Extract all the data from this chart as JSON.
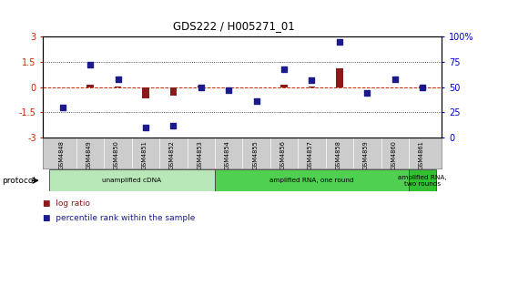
{
  "title": "GDS222 / H005271_01",
  "samples": [
    "GSM4848",
    "GSM4849",
    "GSM4850",
    "GSM4851",
    "GSM4852",
    "GSM4853",
    "GSM4854",
    "GSM4855",
    "GSM4856",
    "GSM4857",
    "GSM4858",
    "GSM4859",
    "GSM4860",
    "GSM4861"
  ],
  "log_ratio": [
    0.0,
    0.12,
    0.05,
    -0.65,
    -0.5,
    0.1,
    -0.05,
    -0.05,
    0.12,
    0.02,
    1.1,
    -0.05,
    0.0,
    0.02
  ],
  "percentile": [
    30,
    72,
    58,
    10,
    12,
    50,
    47,
    36,
    68,
    57,
    95,
    44,
    58,
    50
  ],
  "log_ratio_color": "#8b1a1a",
  "percentile_color": "#1a1a8b",
  "ylim_left": [
    -3,
    3
  ],
  "ylim_right": [
    0,
    100
  ],
  "yticks_left": [
    -3,
    -1.5,
    0,
    1.5,
    3
  ],
  "yticks_right": [
    0,
    25,
    50,
    75,
    100
  ],
  "protocol_groups": [
    {
      "label": "unamplified cDNA",
      "start": 0,
      "end": 5,
      "color": "#b8e8b8"
    },
    {
      "label": "amplified RNA, one round",
      "start": 6,
      "end": 12,
      "color": "#50d050"
    },
    {
      "label": "amplified RNA,\ntwo rounds",
      "start": 13,
      "end": 13,
      "color": "#30c030"
    }
  ],
  "protocol_label": "protocol",
  "legend_items": [
    {
      "label": "log ratio",
      "color": "#8b1a1a"
    },
    {
      "label": "percentile rank within the sample",
      "color": "#1a1a8b"
    }
  ],
  "background_color": "#ffffff",
  "plot_bg": "#ffffff",
  "sample_bg": "#cccccc"
}
